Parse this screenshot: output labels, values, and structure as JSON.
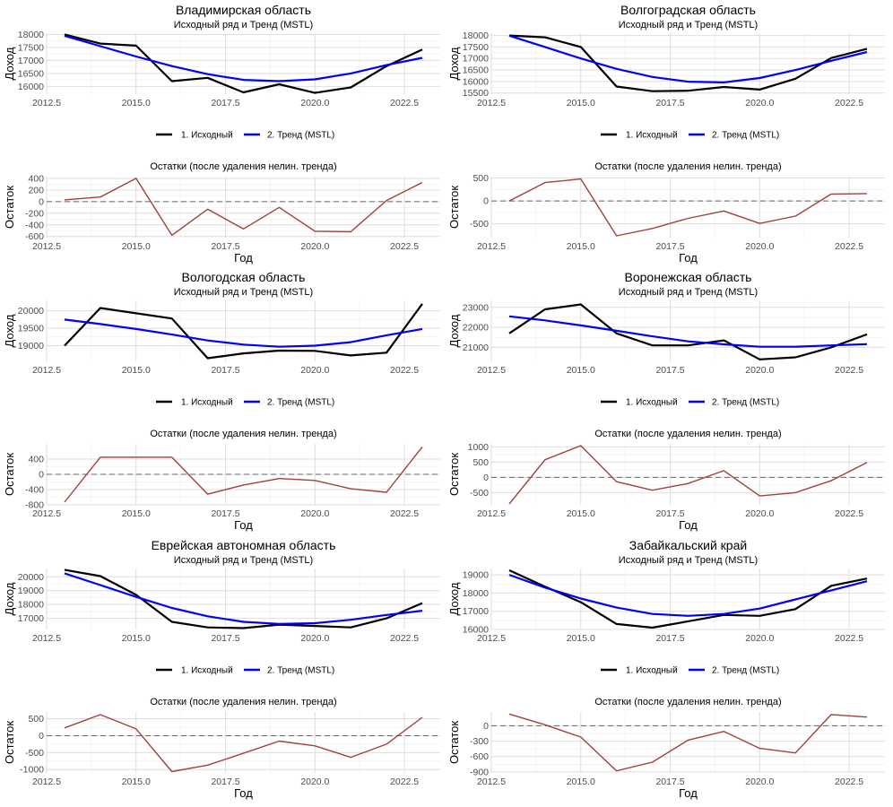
{
  "figure": {
    "main_subtitle": "Исходный ряд и Тренд (MSTL)",
    "resid_title": "Остатки (после удаления нелин. тренда)",
    "main_ylabel": "Доход",
    "resid_ylabel": "Остаток",
    "xlabel": "Год",
    "legend": [
      {
        "label": "1. Исходный",
        "color": "#000000"
      },
      {
        "label": "2. Тренд (MSTL)",
        "color": "#0000ff"
      }
    ],
    "colors": {
      "original": "#000000",
      "trend": "#0000ff",
      "residual": "#a0413c",
      "zero_line": "#666666",
      "grid": "#dedede"
    }
  },
  "chart_data": [
    {
      "type": "line",
      "title": "Владимирская область",
      "x": [
        2013,
        2014,
        2015,
        2016,
        2017,
        2018,
        2019,
        2020,
        2021,
        2022,
        2023
      ],
      "xticks": [
        2012.5,
        2015.0,
        2017.5,
        2020.0,
        2022.5
      ],
      "xlim": [
        2012.5,
        2023.5
      ],
      "main": {
        "ylim": [
          15700,
          18050
        ],
        "yticks": [
          16000,
          16500,
          17000,
          17500,
          18000
        ],
        "series": [
          {
            "name": "1. Исходный",
            "values": [
              18000,
              17650,
              17570,
              16200,
              16330,
              15770,
              16080,
              15750,
              15960,
              16780,
              17420
            ]
          },
          {
            "name": "2. Тренд (MSTL)",
            "values": [
              17950,
              17550,
              17150,
              16780,
              16470,
              16250,
              16200,
              16270,
              16500,
              16820,
              17100
            ]
          }
        ]
      },
      "residual": {
        "ylim": [
          -620,
          430
        ],
        "yticks": [
          -600,
          -400,
          -200,
          0,
          200,
          400
        ],
        "values": [
          30,
          80,
          400,
          -580,
          -130,
          -470,
          -100,
          -510,
          -520,
          20,
          330
        ]
      }
    },
    {
      "type": "line",
      "title": "Волгоградская область",
      "x": [
        2013,
        2014,
        2015,
        2016,
        2017,
        2018,
        2019,
        2020,
        2021,
        2022,
        2023
      ],
      "xticks": [
        2012.5,
        2015.0,
        2017.5,
        2020.0,
        2022.5
      ],
      "xlim": [
        2012.5,
        2023.5
      ],
      "main": {
        "ylim": [
          15450,
          18100
        ],
        "yticks": [
          15500,
          16000,
          16500,
          17000,
          17500,
          18000
        ],
        "series": [
          {
            "name": "1. Исходный",
            "values": [
              18000,
              17920,
              17500,
              15780,
              15580,
              15600,
              15760,
              15650,
              16120,
              17020,
              17420
            ]
          },
          {
            "name": "2. Тренд (MSTL)",
            "values": [
              17990,
              17500,
              17000,
              16550,
              16200,
              15990,
              15960,
              16150,
              16500,
              16900,
              17280
            ]
          }
        ]
      },
      "residual": {
        "ylim": [
          -800,
          530
        ],
        "yticks": [
          -500,
          0,
          500
        ],
        "values": [
          0,
          400,
          480,
          -760,
          -600,
          -380,
          -220,
          -490,
          -330,
          150,
          160
        ]
      }
    },
    {
      "type": "line",
      "title": "Вологодская область",
      "x": [
        2013,
        2014,
        2015,
        2016,
        2017,
        2018,
        2019,
        2020,
        2021,
        2022,
        2023
      ],
      "xticks": [
        2012.5,
        2015.0,
        2017.5,
        2020.0,
        2022.5
      ],
      "xlim": [
        2012.5,
        2023.5
      ],
      "main": {
        "ylim": [
          18550,
          20300
        ],
        "yticks": [
          19000,
          19500,
          20000
        ],
        "series": [
          {
            "name": "1. Исходный",
            "values": [
              19000,
              20080,
              19930,
              19780,
              18640,
              18780,
              18860,
              18850,
              18720,
              18800,
              20200
            ]
          },
          {
            "name": "2. Тренд (MSTL)",
            "values": [
              19750,
              19620,
              19480,
              19320,
              19150,
              19030,
              18970,
              19000,
              19100,
              19300,
              19480
            ]
          }
        ]
      },
      "residual": {
        "ylim": [
          -800,
          800
        ],
        "yticks": [
          -800,
          -400,
          0,
          400
        ],
        "values": [
          -730,
          450,
          450,
          450,
          -520,
          -280,
          -110,
          -160,
          -380,
          -470,
          720
        ]
      }
    },
    {
      "type": "line",
      "title": "Воронежская область",
      "x": [
        2013,
        2014,
        2015,
        2016,
        2017,
        2018,
        2019,
        2020,
        2021,
        2022,
        2023
      ],
      "xticks": [
        2012.5,
        2015.0,
        2017.5,
        2020.0,
        2022.5
      ],
      "xlim": [
        2012.5,
        2023.5
      ],
      "main": {
        "ylim": [
          20300,
          23350
        ],
        "yticks": [
          21000,
          22000,
          23000
        ],
        "series": [
          {
            "name": "1. Исходный",
            "values": [
              21700,
              22900,
              23150,
              21700,
              21100,
              21100,
              21350,
              20400,
              20500,
              21000,
              21650
            ]
          },
          {
            "name": "2. Тренд (MSTL)",
            "values": [
              22550,
              22350,
              22100,
              21830,
              21550,
              21300,
              21150,
              21030,
              21030,
              21100,
              21160
            ]
          }
        ]
      },
      "residual": {
        "ylim": [
          -900,
          1100
        ],
        "yticks": [
          -500,
          0,
          500,
          1000
        ],
        "values": [
          -870,
          580,
          1040,
          -140,
          -420,
          -200,
          220,
          -610,
          -500,
          -110,
          490
        ]
      }
    },
    {
      "type": "line",
      "title": "Еврейская автономная область",
      "x": [
        2013,
        2014,
        2015,
        2016,
        2017,
        2018,
        2019,
        2020,
        2021,
        2022,
        2023
      ],
      "xticks": [
        2012.5,
        2015.0,
        2017.5,
        2020.0,
        2022.5
      ],
      "xlim": [
        2012.5,
        2023.5
      ],
      "main": {
        "ylim": [
          16200,
          20600
        ],
        "yticks": [
          17000,
          18000,
          19000,
          20000
        ],
        "series": [
          {
            "name": "1. Исходный",
            "values": [
              20500,
              20050,
              18700,
              16750,
              16350,
              16300,
              16550,
              16450,
              16350,
              17000,
              18100
            ]
          },
          {
            "name": "2. Тренд (MSTL)",
            "values": [
              20250,
              19400,
              18550,
              17750,
              17150,
              16750,
              16600,
              16650,
              16900,
              17250,
              17550
            ]
          }
        ]
      },
      "residual": {
        "ylim": [
          -1100,
          700
        ],
        "yticks": [
          -1000,
          -500,
          0,
          500
        ],
        "values": [
          230,
          620,
          200,
          -1060,
          -870,
          -520,
          -160,
          -300,
          -640,
          -250,
          540
        ]
      }
    },
    {
      "type": "line",
      "title": "Забайкальский край",
      "x": [
        2013,
        2014,
        2015,
        2016,
        2017,
        2018,
        2019,
        2020,
        2021,
        2022,
        2023
      ],
      "xticks": [
        2012.5,
        2015.0,
        2017.5,
        2020.0,
        2022.5
      ],
      "xlim": [
        2012.5,
        2023.5
      ],
      "main": {
        "ylim": [
          16000,
          19350
        ],
        "yticks": [
          16000,
          17000,
          18000,
          19000
        ],
        "series": [
          {
            "name": "1. Исходный",
            "values": [
              19250,
              18350,
              17500,
              16300,
              16100,
              16450,
              16800,
              16750,
              17120,
              18400,
              18800
            ]
          },
          {
            "name": "2. Тренд (MSTL)",
            "values": [
              19000,
              18300,
              17700,
              17200,
              16850,
              16750,
              16850,
              17150,
              17650,
              18150,
              18650
            ]
          }
        ]
      },
      "residual": {
        "ylim": [
          -920,
          270
        ],
        "yticks": [
          -900,
          -600,
          -300,
          0
        ],
        "values": [
          230,
          20,
          -220,
          -880,
          -710,
          -280,
          -110,
          -440,
          -530,
          220,
          170
        ]
      }
    }
  ]
}
